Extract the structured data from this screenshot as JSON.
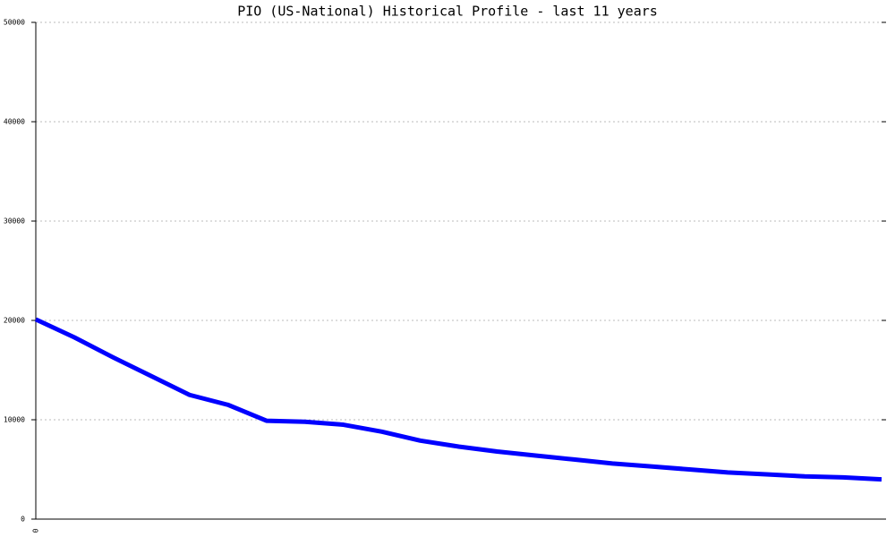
{
  "chart_data": {
    "type": "line",
    "title": "PIO (US-National) Historical Profile - last 11 years",
    "categories": [
      "0",
      null,
      null,
      null,
      null,
      null,
      null,
      null,
      null,
      null,
      null,
      null,
      null,
      null,
      null,
      null,
      null,
      null,
      null,
      null,
      null,
      null,
      null
    ],
    "series": [
      {
        "color": "#0000ff",
        "values": [
          20100,
          18300,
          16300,
          14400,
          12500,
          11500,
          9900,
          9800,
          9500,
          8800,
          7900,
          7300,
          6800,
          6400,
          6000,
          5600,
          5300,
          5000,
          4700,
          4500,
          4300,
          4200,
          4000
        ]
      }
    ],
    "ylim": [
      0,
      50000
    ],
    "yticks": [
      0,
      10000,
      20000,
      30000,
      40000,
      50000
    ],
    "grid": true
  }
}
